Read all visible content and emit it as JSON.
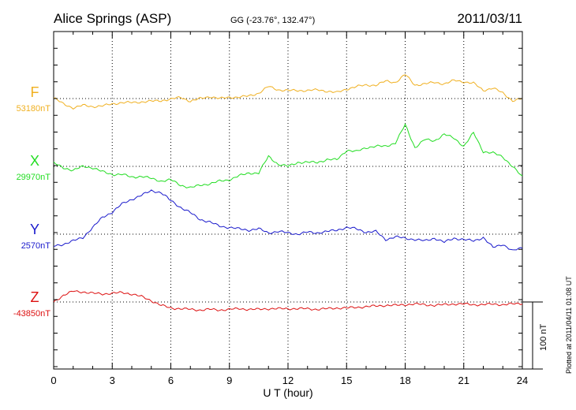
{
  "chart_data": {
    "type": "line",
    "title": "Alice Springs (ASP)",
    "subtitle": "GG (-23.76°, 132.47°)",
    "date": "2011/03/11",
    "xlabel": "U T (hour)",
    "xlim": [
      0,
      24
    ],
    "x_ticks": [
      "0",
      "3",
      "6",
      "9",
      "12",
      "15",
      "18",
      "21",
      "24"
    ],
    "scale_label": "100 nT",
    "scale_nT": 100,
    "footer": "Plotted at 2011/04/11 01:08 UT",
    "grid": true,
    "x": [
      0,
      0.5,
      1,
      1.5,
      2,
      2.5,
      3,
      3.5,
      4,
      4.5,
      5,
      5.5,
      6,
      6.5,
      7,
      7.5,
      8,
      8.5,
      9,
      9.5,
      10,
      10.5,
      11,
      11.5,
      12,
      12.5,
      13,
      13.5,
      14,
      14.5,
      15,
      15.5,
      16,
      16.5,
      17,
      17.5,
      18,
      18.5,
      19,
      19.5,
      20,
      20.5,
      21,
      21.5,
      22,
      22.5,
      23,
      23.5,
      24
    ],
    "series": [
      {
        "name": "F",
        "baseline_label": "53180nT",
        "color": "#f0b020",
        "values": [
          1,
          -8,
          -14,
          -10,
          -12,
          -11,
          -8,
          -6,
          -6,
          -5,
          -4,
          -3,
          -1,
          2,
          -4,
          0,
          3,
          0,
          2,
          2,
          4,
          8,
          18,
          13,
          12,
          12,
          12,
          13,
          11,
          9,
          14,
          18,
          20,
          20,
          26,
          24,
          36,
          20,
          22,
          24,
          22,
          27,
          25,
          23,
          12,
          16,
          8,
          -3,
          0
        ]
      },
      {
        "name": "X",
        "baseline_label": "29970nT",
        "color": "#22dd22",
        "values": [
          5,
          -2,
          -6,
          0,
          -2,
          -8,
          -12,
          -12,
          -16,
          -15,
          -18,
          -22,
          -20,
          -28,
          -32,
          -28,
          -26,
          -22,
          -20,
          -14,
          -10,
          -10,
          15,
          3,
          0,
          6,
          6,
          6,
          10,
          10,
          24,
          22,
          28,
          30,
          30,
          35,
          62,
          28,
          40,
          38,
          48,
          42,
          30,
          50,
          22,
          20,
          14,
          0,
          -16
        ]
      },
      {
        "name": "Y",
        "baseline_label": "2570nT",
        "color": "#1a1acc",
        "values": [
          -18,
          -15,
          -10,
          -5,
          10,
          25,
          33,
          45,
          52,
          58,
          65,
          62,
          50,
          40,
          32,
          22,
          18,
          12,
          10,
          8,
          6,
          8,
          2,
          4,
          2,
          0,
          3,
          2,
          4,
          6,
          10,
          8,
          3,
          4,
          -8,
          -4,
          -6,
          -8,
          -10,
          -6,
          -12,
          -6,
          -8,
          -10,
          -5,
          -20,
          -15,
          -25,
          -20
        ]
      },
      {
        "name": "Z",
        "baseline_label": "-43850nT",
        "color": "#dd1111",
        "values": [
          0,
          10,
          16,
          15,
          13,
          12,
          13,
          14,
          12,
          8,
          2,
          -5,
          -9,
          -10,
          -11,
          -12,
          -11,
          -12,
          -11,
          -10,
          -11,
          -11,
          -10,
          -10,
          -10,
          -10,
          -10,
          -11,
          -10,
          -9,
          -9,
          -8,
          -7,
          -6,
          -5,
          -5,
          -4,
          -3,
          -4,
          -5,
          -4,
          -3,
          -3,
          -4,
          -4,
          -3,
          -4,
          -3,
          -2
        ]
      }
    ]
  }
}
